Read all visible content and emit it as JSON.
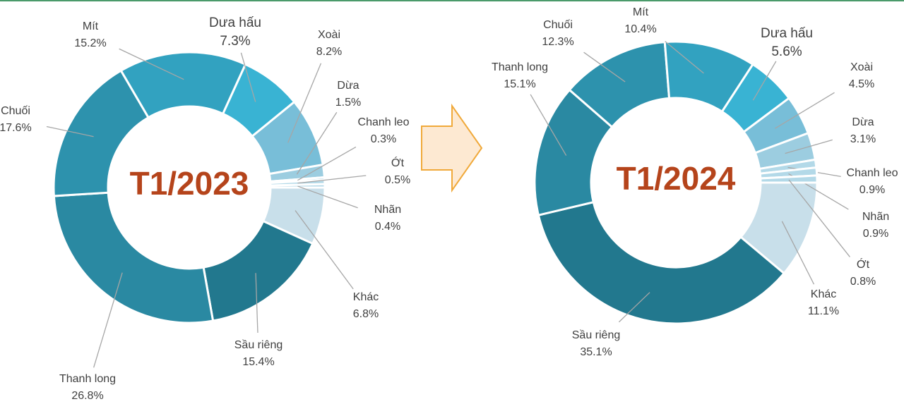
{
  "chart_data": [
    {
      "type": "donut",
      "title": "T1/2023",
      "categories": [
        "Khác",
        "Sầu riêng",
        "Thanh long",
        "Chuối",
        "Mít",
        "Dưa hấu",
        "Xoài",
        "Dừa",
        "Chanh leo",
        "Ớt",
        "Nhãn"
      ],
      "values": [
        6.8,
        15.4,
        26.8,
        17.6,
        15.2,
        7.3,
        8.2,
        1.5,
        0.3,
        0.5,
        0.4
      ],
      "value_labels": [
        "6.8%",
        "15.4%",
        "26.8%",
        "17.6%",
        "15.2%",
        "7.3%",
        "8.2%",
        "1.5%",
        "0.3%",
        "0.5%",
        "0.4%"
      ],
      "colors": [
        "#c8dfea",
        "#22788e",
        "#2a89a2",
        "#2d92ad",
        "#32a2c0",
        "#39b3d3",
        "#78bed8",
        "#9ccde0",
        "#b3d9e8",
        "#b3d9e8",
        "#b3d9e8"
      ]
    },
    {
      "type": "donut",
      "title": "T1/2024",
      "categories": [
        "Khác",
        "Sầu riêng",
        "Thanh long",
        "Chuối",
        "Mít",
        "Dưa hấu",
        "Xoài",
        "Dừa",
        "Chanh leo",
        "Nhãn",
        "Ớt"
      ],
      "values": [
        11.1,
        35.1,
        15.1,
        12.3,
        10.4,
        5.6,
        4.5,
        3.1,
        0.9,
        0.9,
        0.8
      ],
      "value_labels": [
        "11.1%",
        "35.1%",
        "15.1%",
        "12.3%",
        "10.4%",
        "5.6%",
        "4.5%",
        "3.1%",
        "0.9%",
        "0.9%",
        "0.8%"
      ],
      "colors": [
        "#c8dfea",
        "#22788e",
        "#2a89a2",
        "#2d92ad",
        "#32a2c0",
        "#39b3d3",
        "#78bed8",
        "#9ccde0",
        "#b3d9e8",
        "#b3d9e8",
        "#b3d9e8"
      ]
    }
  ]
}
